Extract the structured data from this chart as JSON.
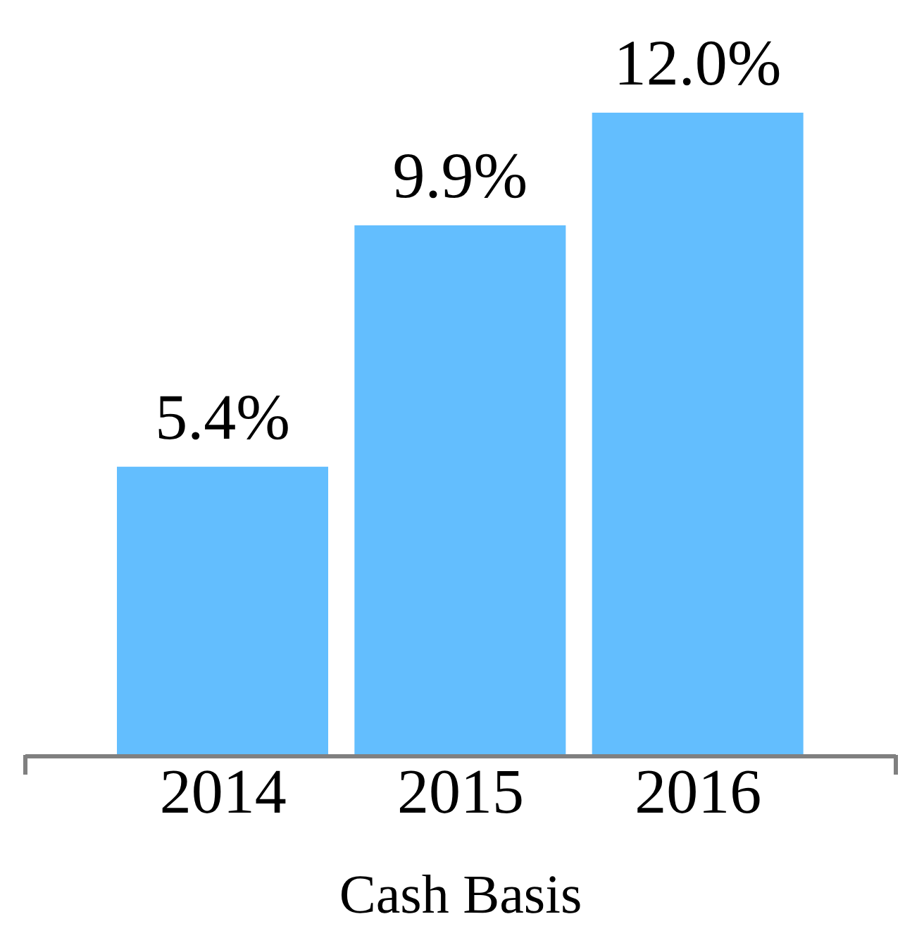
{
  "chart_data": {
    "type": "bar",
    "xlabel": "Cash Basis",
    "categories": [
      "2014",
      "2015",
      "2016"
    ],
    "values": [
      5.4,
      9.9,
      12.0
    ],
    "value_labels": [
      "5.4%",
      "9.9%",
      "12.0%"
    ],
    "color": "#63befe",
    "ylim": [
      0,
      12
    ],
    "tick_labels": "x"
  }
}
